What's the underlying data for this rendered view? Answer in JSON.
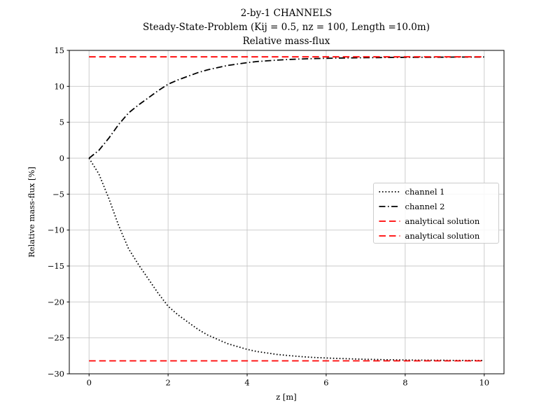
{
  "chart_data": {
    "type": "line",
    "title": "2-by-1 CHANNELS",
    "subtitle": "Steady-State-Problem (Kij = 0.5, nz = 100, Length =10.0m)",
    "subtitle2": "Relative mass-flux",
    "xlabel": "z [m]",
    "ylabel": "Relative mass-flux [%]",
    "xlim": [
      -0.5,
      10.5
    ],
    "ylim": [
      -30,
      15
    ],
    "xticks": [
      0,
      2,
      4,
      6,
      8,
      10
    ],
    "yticks": [
      -30,
      -25,
      -20,
      -15,
      -10,
      -5,
      0,
      5,
      10,
      15
    ],
    "grid": true,
    "grid_color": "#c8c8c8",
    "axis_color": "#000000",
    "background_color": "#ffffff",
    "legend": {
      "position": "center right",
      "border_color": "#cccccc",
      "entries": [
        {
          "label": "channel 1",
          "style": "dotted",
          "color": "#000000"
        },
        {
          "label": "channel 2",
          "style": "dashdot",
          "color": "#000000"
        },
        {
          "label": "analytical solution",
          "style": "dashed",
          "color": "#ff0000"
        },
        {
          "label": "analytical solution",
          "style": "dashed",
          "color": "#ff0000"
        }
      ]
    },
    "series": [
      {
        "name": "channel 1",
        "color": "#000000",
        "style": "dotted",
        "asymptote": -28.2,
        "x": [
          0,
          0.25,
          0.5,
          0.75,
          1,
          1.25,
          1.5,
          1.75,
          2,
          2.25,
          2.5,
          2.75,
          3,
          3.25,
          3.5,
          3.75,
          4,
          4.25,
          4.5,
          4.75,
          5,
          5.25,
          5.5,
          5.75,
          6,
          6.25,
          6.5,
          6.75,
          7,
          7.25,
          7.5,
          7.75,
          8,
          8.25,
          8.5,
          8.75,
          9,
          9.25,
          9.5,
          9.75,
          10
        ],
        "values": [
          0,
          -2.2,
          -5.6,
          -9.4,
          -12.6,
          -14.8,
          -16.8,
          -18.8,
          -20.6,
          -21.8,
          -22.8,
          -23.8,
          -24.6,
          -25.2,
          -25.8,
          -26.2,
          -26.6,
          -26.9,
          -27.1,
          -27.3,
          -27.44,
          -27.56,
          -27.66,
          -27.74,
          -27.8,
          -27.86,
          -27.9,
          -27.94,
          -27.98,
          -28,
          -28.04,
          -28.06,
          -28.08,
          -28.1,
          -28.1,
          -28.12,
          -28.12,
          -28.14,
          -28.14,
          -28.14,
          -28.16
        ]
      },
      {
        "name": "channel 2",
        "color": "#000000",
        "style": "dashdot",
        "asymptote": 14.1,
        "x": [
          0,
          0.25,
          0.5,
          0.75,
          1,
          1.25,
          1.5,
          1.75,
          2,
          2.25,
          2.5,
          2.75,
          3,
          3.25,
          3.5,
          3.75,
          4,
          4.25,
          4.5,
          4.75,
          5,
          5.25,
          5.5,
          5.75,
          6,
          6.25,
          6.5,
          6.75,
          7,
          7.25,
          7.5,
          7.75,
          8,
          8.25,
          8.5,
          8.75,
          9,
          9.25,
          9.5,
          9.75,
          10
        ],
        "values": [
          0,
          1.1,
          2.8,
          4.7,
          6.3,
          7.4,
          8.4,
          9.4,
          10.3,
          10.9,
          11.4,
          11.9,
          12.3,
          12.6,
          12.9,
          13.1,
          13.3,
          13.45,
          13.55,
          13.65,
          13.72,
          13.78,
          13.83,
          13.87,
          13.9,
          13.93,
          13.95,
          13.97,
          13.99,
          14,
          14.02,
          14.03,
          14.04,
          14.05,
          14.05,
          14.06,
          14.06,
          14.07,
          14.07,
          14.07,
          14.08
        ]
      },
      {
        "name": "analytical solution",
        "color": "#ff0000",
        "style": "dashed",
        "x": [
          0,
          10
        ],
        "values": [
          14.1,
          14.1
        ]
      },
      {
        "name": "analytical solution",
        "color": "#ff0000",
        "style": "dashed",
        "x": [
          0,
          10
        ],
        "values": [
          -28.2,
          -28.2
        ]
      }
    ]
  }
}
